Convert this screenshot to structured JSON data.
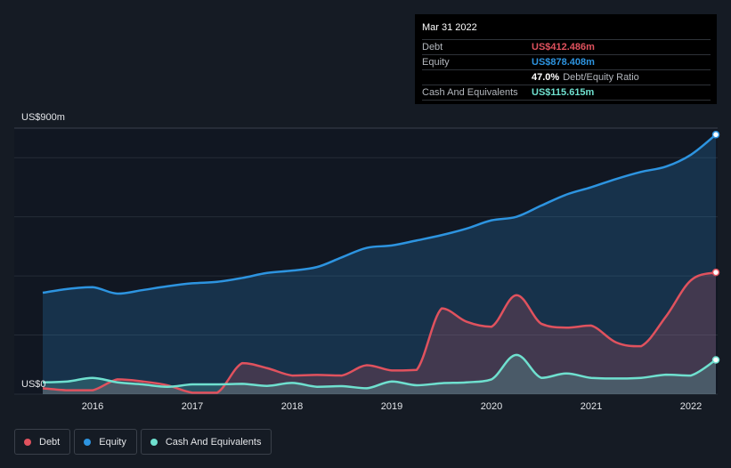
{
  "tooltip": {
    "date": "Mar 31 2022",
    "debt_label": "Debt",
    "debt_value": "US$412.486m",
    "equity_label": "Equity",
    "equity_value": "US$878.408m",
    "ratio_value": "47.0%",
    "ratio_label": "Debt/Equity Ratio",
    "cash_label": "Cash And Equivalents",
    "cash_value": "US$115.615m"
  },
  "legend": {
    "debt": "Debt",
    "equity": "Equity",
    "cash": "Cash And Equivalents"
  },
  "colors": {
    "debt": "#e0525e",
    "equity": "#2d94e0",
    "cash": "#6fe0cf",
    "background": "#151b24",
    "tooltip_label": "#b3b7bd"
  },
  "chart_data": {
    "type": "area",
    "title": "",
    "y_top_label": "US$900m",
    "y_bottom_label": "US$0",
    "ylim": [
      0,
      900
    ],
    "xlim": [
      2015.5,
      2022.25
    ],
    "x_ticks": [
      2016,
      2017,
      2018,
      2019,
      2020,
      2021,
      2022
    ],
    "x_tick_labels": [
      "2016",
      "2017",
      "2018",
      "2019",
      "2020",
      "2021",
      "2022"
    ],
    "series": [
      {
        "name": "Equity",
        "key": "equity",
        "points": [
          [
            2015.5,
            343
          ],
          [
            2015.75,
            356
          ],
          [
            2016.0,
            362
          ],
          [
            2016.25,
            340
          ],
          [
            2016.5,
            352
          ],
          [
            2016.75,
            365
          ],
          [
            2017.0,
            375
          ],
          [
            2017.25,
            380
          ],
          [
            2017.5,
            393
          ],
          [
            2017.75,
            410
          ],
          [
            2018.0,
            418
          ],
          [
            2018.25,
            430
          ],
          [
            2018.5,
            463
          ],
          [
            2018.75,
            495
          ],
          [
            2019.0,
            503
          ],
          [
            2019.25,
            520
          ],
          [
            2019.5,
            538
          ],
          [
            2019.75,
            560
          ],
          [
            2020.0,
            588
          ],
          [
            2020.25,
            600
          ],
          [
            2020.5,
            638
          ],
          [
            2020.75,
            675
          ],
          [
            2021.0,
            700
          ],
          [
            2021.25,
            728
          ],
          [
            2021.5,
            752
          ],
          [
            2021.75,
            770
          ],
          [
            2022.0,
            810
          ],
          [
            2022.25,
            878
          ]
        ]
      },
      {
        "name": "Debt",
        "key": "debt",
        "points": [
          [
            2015.5,
            20
          ],
          [
            2015.75,
            13
          ],
          [
            2016.0,
            13
          ],
          [
            2016.25,
            50
          ],
          [
            2016.5,
            43
          ],
          [
            2016.75,
            30
          ],
          [
            2017.0,
            5
          ],
          [
            2017.25,
            5
          ],
          [
            2017.5,
            105
          ],
          [
            2017.75,
            88
          ],
          [
            2018.0,
            63
          ],
          [
            2018.25,
            65
          ],
          [
            2018.5,
            63
          ],
          [
            2018.75,
            98
          ],
          [
            2019.0,
            80
          ],
          [
            2019.25,
            82
          ],
          [
            2019.5,
            290
          ],
          [
            2019.75,
            245
          ],
          [
            2020.0,
            228
          ],
          [
            2020.25,
            335
          ],
          [
            2020.5,
            238
          ],
          [
            2020.75,
            225
          ],
          [
            2021.0,
            232
          ],
          [
            2021.25,
            175
          ],
          [
            2021.5,
            162
          ],
          [
            2021.75,
            263
          ],
          [
            2022.0,
            385
          ],
          [
            2022.25,
            412
          ]
        ]
      },
      {
        "name": "Cash And Equivalents",
        "key": "cash",
        "points": [
          [
            2015.5,
            40
          ],
          [
            2015.75,
            43
          ],
          [
            2016.0,
            55
          ],
          [
            2016.25,
            40
          ],
          [
            2016.5,
            33
          ],
          [
            2016.75,
            25
          ],
          [
            2017.0,
            33
          ],
          [
            2017.25,
            33
          ],
          [
            2017.5,
            35
          ],
          [
            2017.75,
            28
          ],
          [
            2018.0,
            38
          ],
          [
            2018.25,
            25
          ],
          [
            2018.5,
            27
          ],
          [
            2018.75,
            20
          ],
          [
            2019.0,
            43
          ],
          [
            2019.25,
            30
          ],
          [
            2019.5,
            37
          ],
          [
            2019.75,
            40
          ],
          [
            2020.0,
            50
          ],
          [
            2020.25,
            133
          ],
          [
            2020.5,
            55
          ],
          [
            2020.75,
            70
          ],
          [
            2021.0,
            55
          ],
          [
            2021.25,
            53
          ],
          [
            2021.5,
            55
          ],
          [
            2021.75,
            66
          ],
          [
            2022.0,
            63
          ],
          [
            2022.25,
            116
          ]
        ]
      }
    ]
  }
}
